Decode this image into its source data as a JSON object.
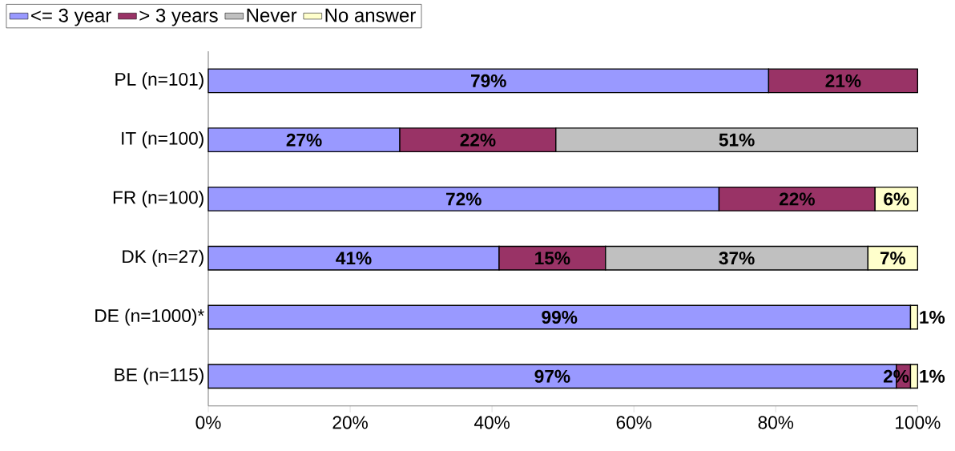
{
  "chart_data": {
    "type": "bar",
    "orientation": "horizontal",
    "stacked": true,
    "legend": "top left",
    "categories": [
      "PL (n=101)",
      "IT (n=100)",
      "FR (n=100)",
      "DK (n=27)",
      "DE (n=1000)*",
      "BE (n=115)"
    ],
    "series": [
      {
        "name": "<= 3 year",
        "color": "#9999ff",
        "values": [
          79,
          27,
          72,
          41,
          99,
          97
        ],
        "value_labels": [
          "79%",
          "27%",
          "72%",
          "41%",
          "99%",
          "97%"
        ]
      },
      {
        "name": "> 3 years",
        "color": "#993366",
        "values": [
          21,
          22,
          22,
          15,
          null,
          2
        ],
        "value_labels": [
          "21%",
          "22%",
          "22%",
          "15%",
          null,
          "2%"
        ]
      },
      {
        "name": "Never",
        "color": "#c0c0c0",
        "values": [
          null,
          51,
          null,
          37,
          null,
          null
        ],
        "value_labels": [
          null,
          "51%",
          null,
          "37%",
          null,
          null
        ]
      },
      {
        "name": "No answer",
        "color": "#ffffcc",
        "values": [
          null,
          null,
          6,
          7,
          1,
          1
        ],
        "value_labels": [
          null,
          null,
          "6%",
          "7%",
          "1%",
          "1%"
        ]
      }
    ],
    "xlim": [
      0,
      100
    ],
    "xticks": [
      {
        "value": 0,
        "label": "0%"
      },
      {
        "value": 20,
        "label": "20%"
      },
      {
        "value": 40,
        "label": "40%"
      },
      {
        "value": 60,
        "label": "60%"
      },
      {
        "value": 80,
        "label": "80%"
      },
      {
        "value": 100,
        "label": "100%"
      }
    ]
  }
}
